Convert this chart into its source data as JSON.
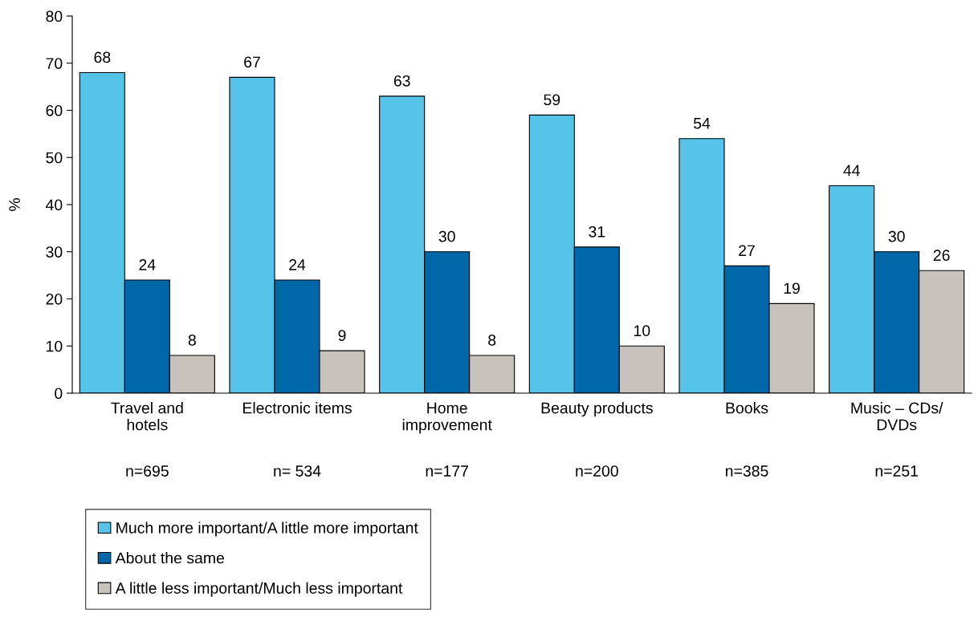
{
  "chart_data": {
    "type": "bar",
    "ylabel": "%",
    "categories": [
      "Travel and\nhotels",
      "Electronic items",
      "Home\nimprovement",
      "Beauty products",
      "Books",
      "Music – CDs/\nDVDs"
    ],
    "series": [
      {
        "name": "Much more important/A little more important",
        "color": "#56c3e9",
        "values": [
          68,
          67,
          63,
          59,
          54,
          44
        ]
      },
      {
        "name": "About the same",
        "color": "#0068a8",
        "values": [
          24,
          24,
          30,
          31,
          27,
          30
        ]
      },
      {
        "name": "A little less important/Much less important",
        "color": "#c8c2bc",
        "values": [
          8,
          9,
          8,
          10,
          19,
          26
        ]
      }
    ],
    "ylim": [
      0,
      80
    ],
    "yticks": [
      0,
      10,
      20,
      30,
      40,
      50,
      60,
      70,
      80
    ],
    "data_labels": true,
    "legend": "bottom left",
    "grid": false,
    "annotations": [
      "n=695",
      "n= 534",
      "n=177",
      "n=200",
      "n=385",
      "n=251"
    ]
  }
}
